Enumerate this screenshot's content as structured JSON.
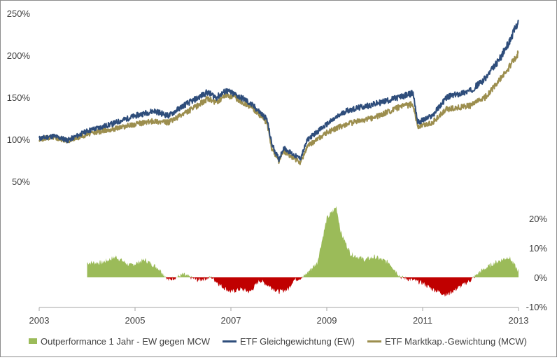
{
  "chart_data": {
    "type": "line",
    "upper_axis": {
      "ticks": [
        "50%",
        "100%",
        "150%",
        "200%",
        "250%"
      ],
      "values": [
        50,
        100,
        150,
        200,
        250
      ],
      "range": [
        30,
        250
      ]
    },
    "lower_axis": {
      "ticks": [
        "-10%",
        "0%",
        "10%",
        "20%"
      ],
      "values": [
        -10,
        0,
        10,
        20
      ],
      "range": [
        -10,
        26
      ]
    },
    "x_axis": {
      "ticks": [
        "2003",
        "2005",
        "2007",
        "2009",
        "2011",
        "2013"
      ],
      "values": [
        2003,
        2005,
        2007,
        2009,
        2011,
        2013
      ],
      "range": [
        2003,
        2013
      ]
    },
    "series": [
      {
        "name": "ETF Gleichgewichtung (EW)",
        "kind": "line",
        "color": "#2e4d7b",
        "points": [
          [
            2003.0,
            101
          ],
          [
            2003.3,
            104
          ],
          [
            2003.6,
            99
          ],
          [
            2004.0,
            110
          ],
          [
            2004.5,
            118
          ],
          [
            2005.0,
            128
          ],
          [
            2005.4,
            134
          ],
          [
            2005.7,
            128
          ],
          [
            2006.0,
            140
          ],
          [
            2006.3,
            149
          ],
          [
            2006.5,
            156
          ],
          [
            2006.7,
            150
          ],
          [
            2006.9,
            158
          ],
          [
            2007.1,
            153
          ],
          [
            2007.3,
            147
          ],
          [
            2007.5,
            138
          ],
          [
            2007.75,
            124
          ],
          [
            2007.85,
            95
          ],
          [
            2008.0,
            76
          ],
          [
            2008.1,
            90
          ],
          [
            2008.3,
            82
          ],
          [
            2008.45,
            77
          ],
          [
            2008.6,
            100
          ],
          [
            2009.0,
            118
          ],
          [
            2009.4,
            134
          ],
          [
            2010.0,
            142
          ],
          [
            2010.5,
            150
          ],
          [
            2010.8,
            155
          ],
          [
            2010.9,
            120
          ],
          [
            2011.2,
            128
          ],
          [
            2011.5,
            150
          ],
          [
            2012.0,
            158
          ],
          [
            2012.3,
            172
          ],
          [
            2012.6,
            195
          ],
          [
            2012.8,
            215
          ],
          [
            2013.0,
            241
          ]
        ]
      },
      {
        "name": "ETF Marktkap.-Gewichtung (MCW)",
        "kind": "line",
        "color": "#9c8e4e",
        "points": [
          [
            2003.0,
            100
          ],
          [
            2003.3,
            103
          ],
          [
            2003.6,
            98
          ],
          [
            2004.0,
            106
          ],
          [
            2004.5,
            112
          ],
          [
            2005.0,
            118
          ],
          [
            2005.4,
            122
          ],
          [
            2005.7,
            120
          ],
          [
            2006.0,
            130
          ],
          [
            2006.3,
            140
          ],
          [
            2006.5,
            148
          ],
          [
            2006.7,
            144
          ],
          [
            2006.9,
            153
          ],
          [
            2007.1,
            149
          ],
          [
            2007.3,
            143
          ],
          [
            2007.5,
            135
          ],
          [
            2007.75,
            120
          ],
          [
            2007.85,
            90
          ],
          [
            2008.0,
            74
          ],
          [
            2008.1,
            86
          ],
          [
            2008.3,
            78
          ],
          [
            2008.45,
            72
          ],
          [
            2008.6,
            92
          ],
          [
            2009.0,
            108
          ],
          [
            2009.4,
            118
          ],
          [
            2010.0,
            126
          ],
          [
            2010.5,
            138
          ],
          [
            2010.8,
            142
          ],
          [
            2010.9,
            115
          ],
          [
            2011.2,
            120
          ],
          [
            2011.5,
            136
          ],
          [
            2012.0,
            140
          ],
          [
            2012.3,
            150
          ],
          [
            2012.6,
            170
          ],
          [
            2012.8,
            185
          ],
          [
            2013.0,
            203
          ]
        ]
      },
      {
        "name": "Outperformance 1 Jahr -  EW gegen MCW",
        "kind": "area",
        "color_positive": "#9bbb59",
        "color_negative": "#c00000",
        "points": [
          [
            2004.0,
            5
          ],
          [
            2004.3,
            5
          ],
          [
            2004.6,
            7
          ],
          [
            2004.9,
            4
          ],
          [
            2005.2,
            6
          ],
          [
            2005.5,
            3
          ],
          [
            2005.7,
            -1
          ],
          [
            2006.0,
            1
          ],
          [
            2006.3,
            -1
          ],
          [
            2006.6,
            0
          ],
          [
            2006.8,
            -3
          ],
          [
            2007.0,
            -5
          ],
          [
            2007.2,
            -4
          ],
          [
            2007.4,
            -5
          ],
          [
            2007.6,
            -1
          ],
          [
            2007.8,
            -3
          ],
          [
            2008.0,
            -5
          ],
          [
            2008.2,
            -4
          ],
          [
            2008.3,
            -1
          ],
          [
            2008.5,
            0
          ],
          [
            2008.8,
            5
          ],
          [
            2009.0,
            20
          ],
          [
            2009.2,
            24
          ],
          [
            2009.3,
            15
          ],
          [
            2009.5,
            8
          ],
          [
            2009.8,
            6
          ],
          [
            2010.0,
            7
          ],
          [
            2010.3,
            5
          ],
          [
            2010.55,
            0
          ],
          [
            2010.8,
            -1
          ],
          [
            2011.0,
            -2
          ],
          [
            2011.2,
            -4
          ],
          [
            2011.5,
            -6
          ],
          [
            2011.8,
            -3
          ],
          [
            2012.0,
            -1
          ],
          [
            2012.2,
            2
          ],
          [
            2012.5,
            5
          ],
          [
            2012.8,
            7
          ],
          [
            2013.0,
            2
          ]
        ]
      }
    ],
    "grid": false,
    "legend": "bottom"
  }
}
